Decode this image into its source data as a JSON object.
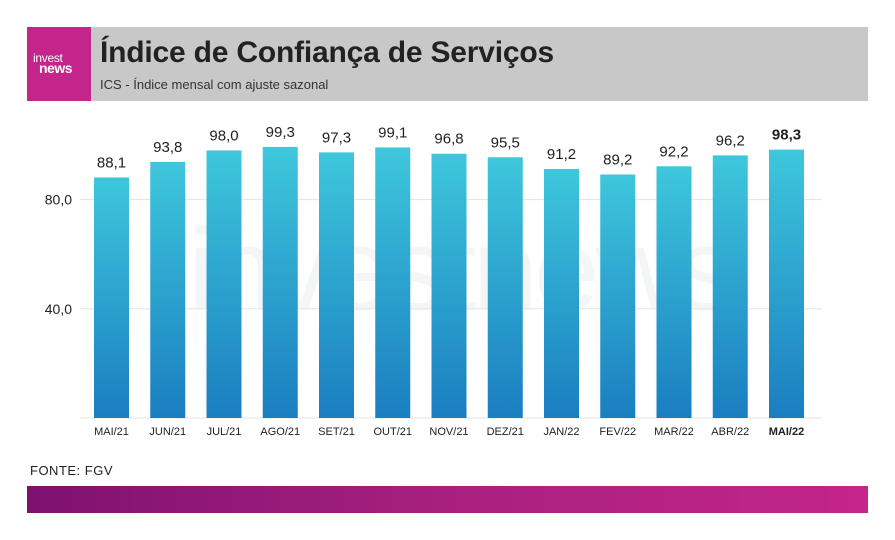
{
  "header": {
    "logo_top": "invest",
    "logo_bottom": "news",
    "title": "Índice de Confiança de Serviços",
    "subtitle": "ICS - Índice mensal com ajuste sazonal"
  },
  "source": "FONTE: FGV",
  "colors": {
    "bar_top": "#3ec7dc",
    "bar_bottom": "#1a7ec0",
    "header_bg": "#c8c8c8",
    "brand_pink": "#c4258a",
    "brand_purple": "#7e1170"
  },
  "chart_data": {
    "type": "bar",
    "categories": [
      "MAI/21",
      "JUN/21",
      "JUL/21",
      "AGO/21",
      "SET/21",
      "OUT/21",
      "NOV/21",
      "DEZ/21",
      "JAN/22",
      "FEV/22",
      "MAR/22",
      "ABR/22",
      "MAI/22"
    ],
    "values": [
      88.1,
      93.8,
      98.0,
      99.3,
      97.3,
      99.1,
      96.8,
      95.5,
      91.2,
      89.2,
      92.2,
      96.2,
      98.3
    ],
    "value_labels": [
      "88,1",
      "93,8",
      "98,0",
      "99,3",
      "97,3",
      "99,1",
      "96,8",
      "95,5",
      "91,2",
      "89,2",
      "92,2",
      "96,2",
      "98,3"
    ],
    "highlight_index": 12,
    "yticks": [
      40,
      80
    ],
    "ytick_labels": [
      "40,0",
      "80,0"
    ],
    "ylim": [
      0,
      100
    ],
    "grid": true,
    "watermark": "investnews"
  }
}
